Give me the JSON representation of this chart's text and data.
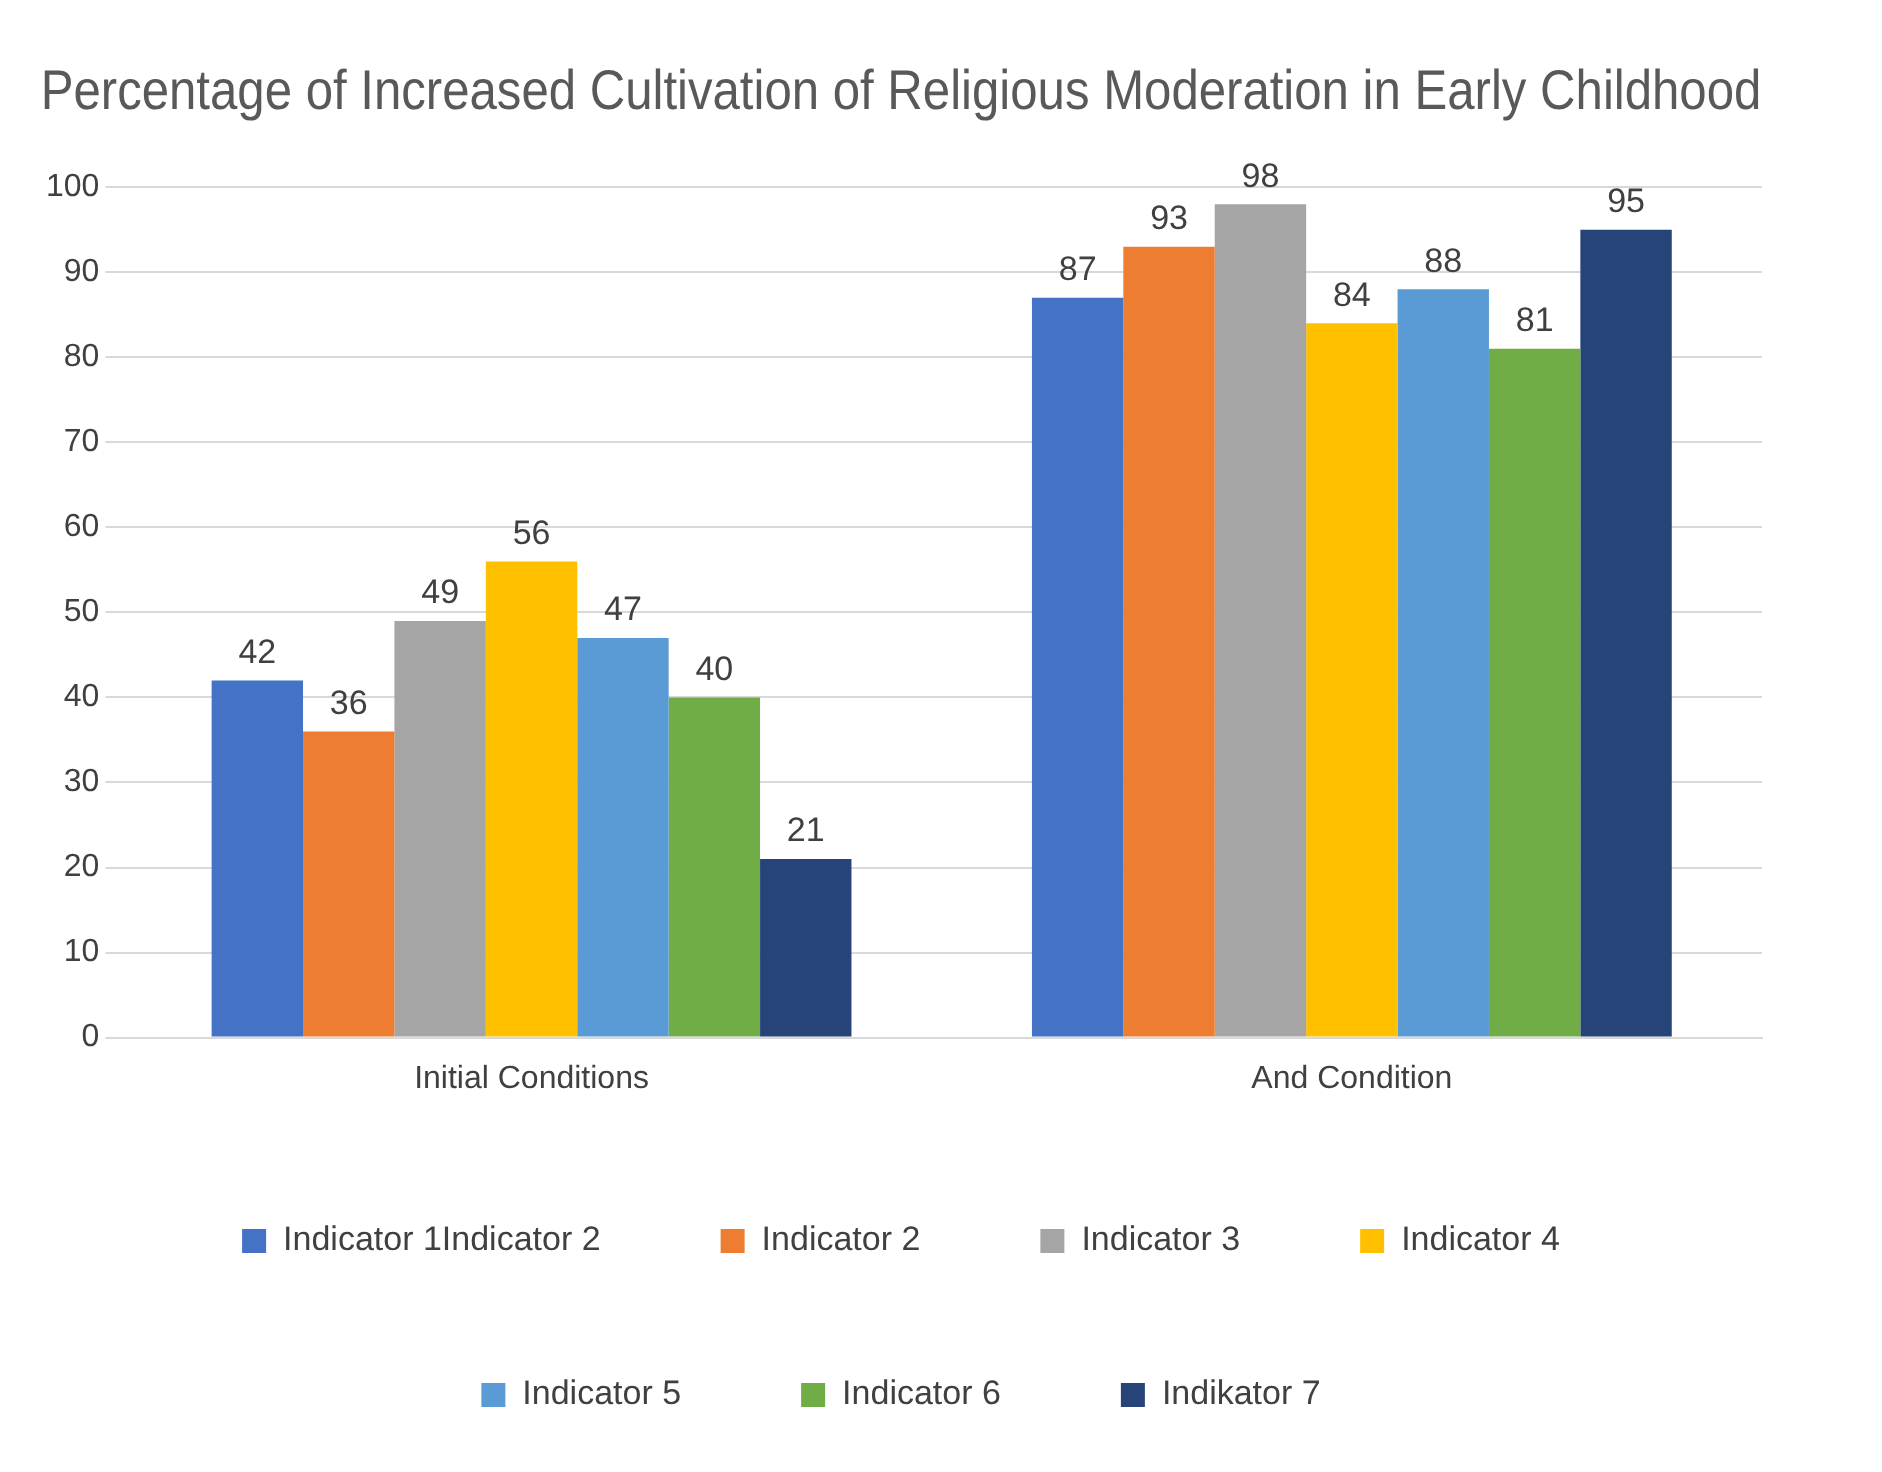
{
  "chart_data": {
    "type": "bar",
    "title": "Percentage of Increased Cultivation of Religious Moderation in Early Childhood",
    "categories": [
      "Initial Conditions",
      "And Condition"
    ],
    "series": [
      {
        "name": "Indicator 1Indicator 2",
        "color": "#4472c4",
        "values": [
          42,
          87
        ]
      },
      {
        "name": "Indicator 2",
        "color": "#ed7d31",
        "values": [
          36,
          93
        ]
      },
      {
        "name": "Indicator 3",
        "color": "#a5a5a5",
        "values": [
          49,
          98
        ]
      },
      {
        "name": "Indicator 4",
        "color": "#ffc000",
        "values": [
          56,
          84
        ]
      },
      {
        "name": "Indicator 5",
        "color": "#5b9bd5",
        "values": [
          47,
          88
        ]
      },
      {
        "name": "Indicator 6",
        "color": "#70ad47",
        "values": [
          40,
          81
        ]
      },
      {
        "name": "Indikator 7",
        "color": "#264478",
        "values": [
          21,
          95
        ]
      }
    ],
    "ylim": [
      0,
      100
    ],
    "yticks": [
      0,
      10,
      20,
      30,
      40,
      50,
      60,
      70,
      80,
      90,
      100
    ],
    "grid": "y",
    "legend": "bottom",
    "data_labels": true
  }
}
